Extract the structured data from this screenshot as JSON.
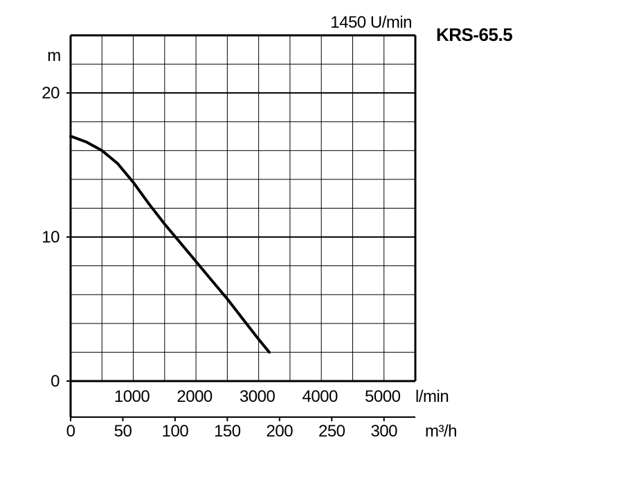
{
  "chart_data": {
    "type": "line",
    "title": "KRS-65.5",
    "subtitle": "1450 U/min",
    "ylabel": "m",
    "xlabel_primary": "l/min",
    "xlabel_secondary": "m³/h",
    "ylim": [
      0,
      24
    ],
    "xlim_lpm": [
      0,
      5500
    ],
    "xlim_m3h": [
      0,
      330
    ],
    "y_ticks": [
      0,
      10,
      20
    ],
    "x_ticks_lpm": [
      1000,
      2000,
      3000,
      4000,
      5000
    ],
    "x_ticks_m3h": [
      0,
      50,
      100,
      150,
      200,
      250,
      300
    ],
    "grid": true,
    "grid_minor_x_lpm": 500,
    "grid_minor_y": 2,
    "series": [
      {
        "x": [
          0,
          250,
          500,
          750,
          1000,
          1250,
          1500,
          1750,
          2000,
          2250,
          2500,
          2750,
          3000,
          3170
        ],
        "y": [
          17,
          16.6,
          16.0,
          15.1,
          13.8,
          12.3,
          10.9,
          9.6,
          8.3,
          7.0,
          5.7,
          4.3,
          2.9,
          2.0
        ]
      }
    ],
    "color": "#000000"
  }
}
